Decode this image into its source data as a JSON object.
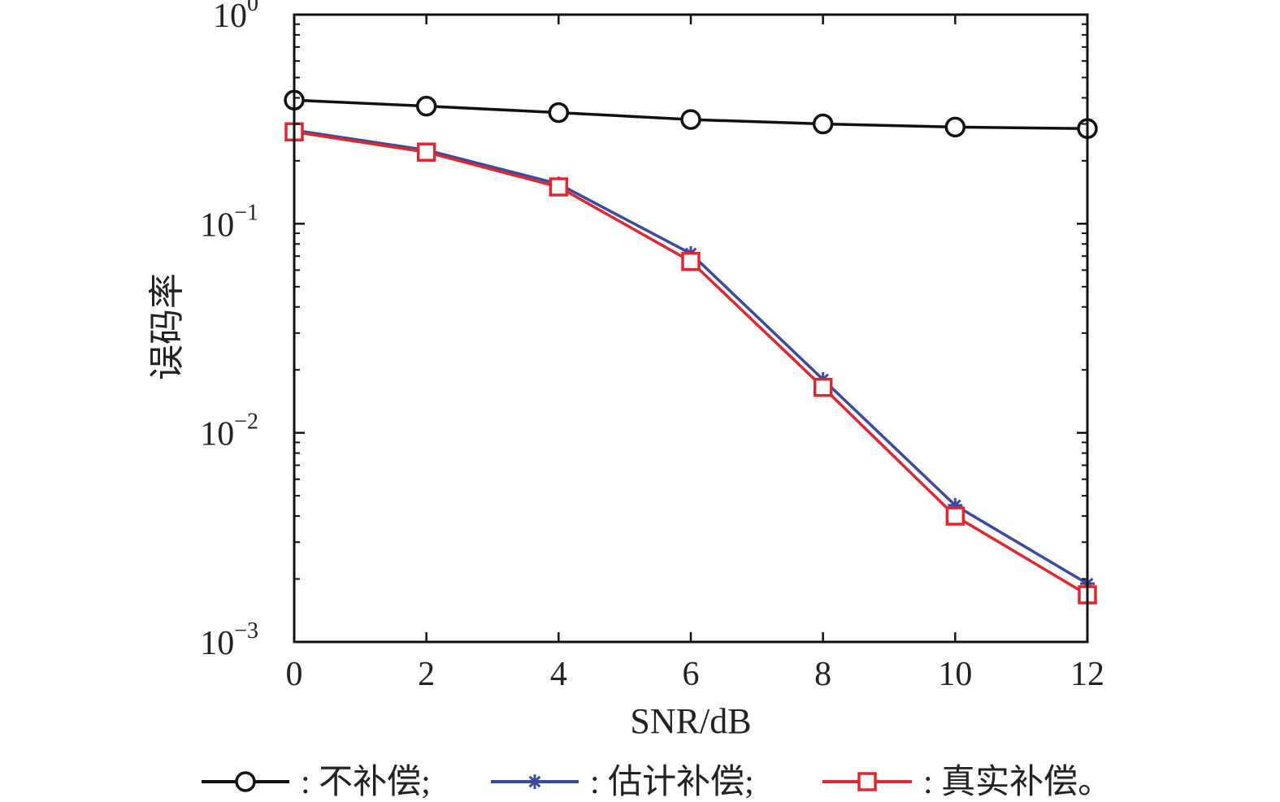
{
  "chart_data": {
    "type": "line",
    "title": "",
    "xlabel": "SNR/dB",
    "ylabel": "误码率",
    "yscale": "log",
    "x": [
      0,
      2,
      4,
      6,
      8,
      10,
      12
    ],
    "xlim": [
      0,
      12
    ],
    "ylim": [
      0.001,
      1
    ],
    "x_ticks": [
      "0",
      "2",
      "4",
      "6",
      "8",
      "10",
      "12"
    ],
    "y_ticks": [
      {
        "value": 1,
        "base": "10",
        "exp": "0"
      },
      {
        "value": 0.1,
        "base": "10",
        "exp": "−1"
      },
      {
        "value": 0.01,
        "base": "10",
        "exp": "−2"
      },
      {
        "value": 0.001,
        "base": "10",
        "exp": "−3"
      }
    ],
    "grid": false,
    "legend_position": "bottom",
    "series": [
      {
        "key": "uncompensated",
        "name": "不补偿;",
        "marker": "circle",
        "color": "#111111",
        "values": [
          0.39,
          0.365,
          0.34,
          0.315,
          0.3,
          0.29,
          0.285
        ]
      },
      {
        "key": "estimated",
        "name": "估计补偿;",
        "marker": "asterisk",
        "color": "#3a4aa0",
        "values": [
          0.28,
          0.225,
          0.155,
          0.072,
          0.018,
          0.0045,
          0.0019
        ]
      },
      {
        "key": "true",
        "name": "真实补偿。",
        "marker": "square",
        "color": "#e0262e",
        "values": [
          0.275,
          0.22,
          0.15,
          0.066,
          0.0165,
          0.004,
          0.00168
        ]
      }
    ]
  }
}
